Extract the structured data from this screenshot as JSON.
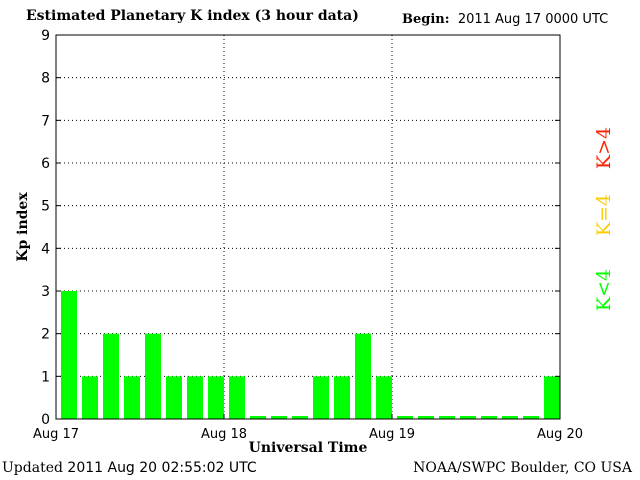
{
  "header": {
    "title": "Estimated Planetary K index (3 hour data)",
    "begin_label": "Begin:",
    "begin_value": "2011 Aug 17 0000 UTC"
  },
  "footer": {
    "updated_label": "Updated",
    "updated_value": "2011 Aug 20 02:55:02 UTC",
    "source": "NOAA/SWPC Boulder, CO USA"
  },
  "legend": {
    "items": [
      {
        "label": "K<4",
        "color": "#00ff00"
      },
      {
        "label": "K=4",
        "color": "#ffcc00"
      },
      {
        "label": "K>4",
        "color": "#ff2200"
      }
    ]
  },
  "chart_data": {
    "type": "bar",
    "title": "Estimated Planetary K index (3 hour data)",
    "xlabel": "Universal Time",
    "ylabel": "Kp index",
    "ylim": [
      0,
      9
    ],
    "yticks": [
      "0",
      "1",
      "2",
      "3",
      "4",
      "5",
      "6",
      "7",
      "8",
      "9"
    ],
    "xtick_labels": [
      "Aug 17",
      "Aug 18",
      "Aug 19",
      "Aug 20"
    ],
    "x_start": "2011 Aug 17 0000 UTC",
    "grid": "dotted",
    "values": [
      3,
      1,
      2,
      1,
      2,
      1,
      1,
      1,
      1,
      0,
      0,
      0,
      1,
      1,
      2,
      1,
      0,
      0,
      0,
      0,
      0,
      0,
      0,
      1
    ],
    "bar_color": "#00ff00"
  }
}
